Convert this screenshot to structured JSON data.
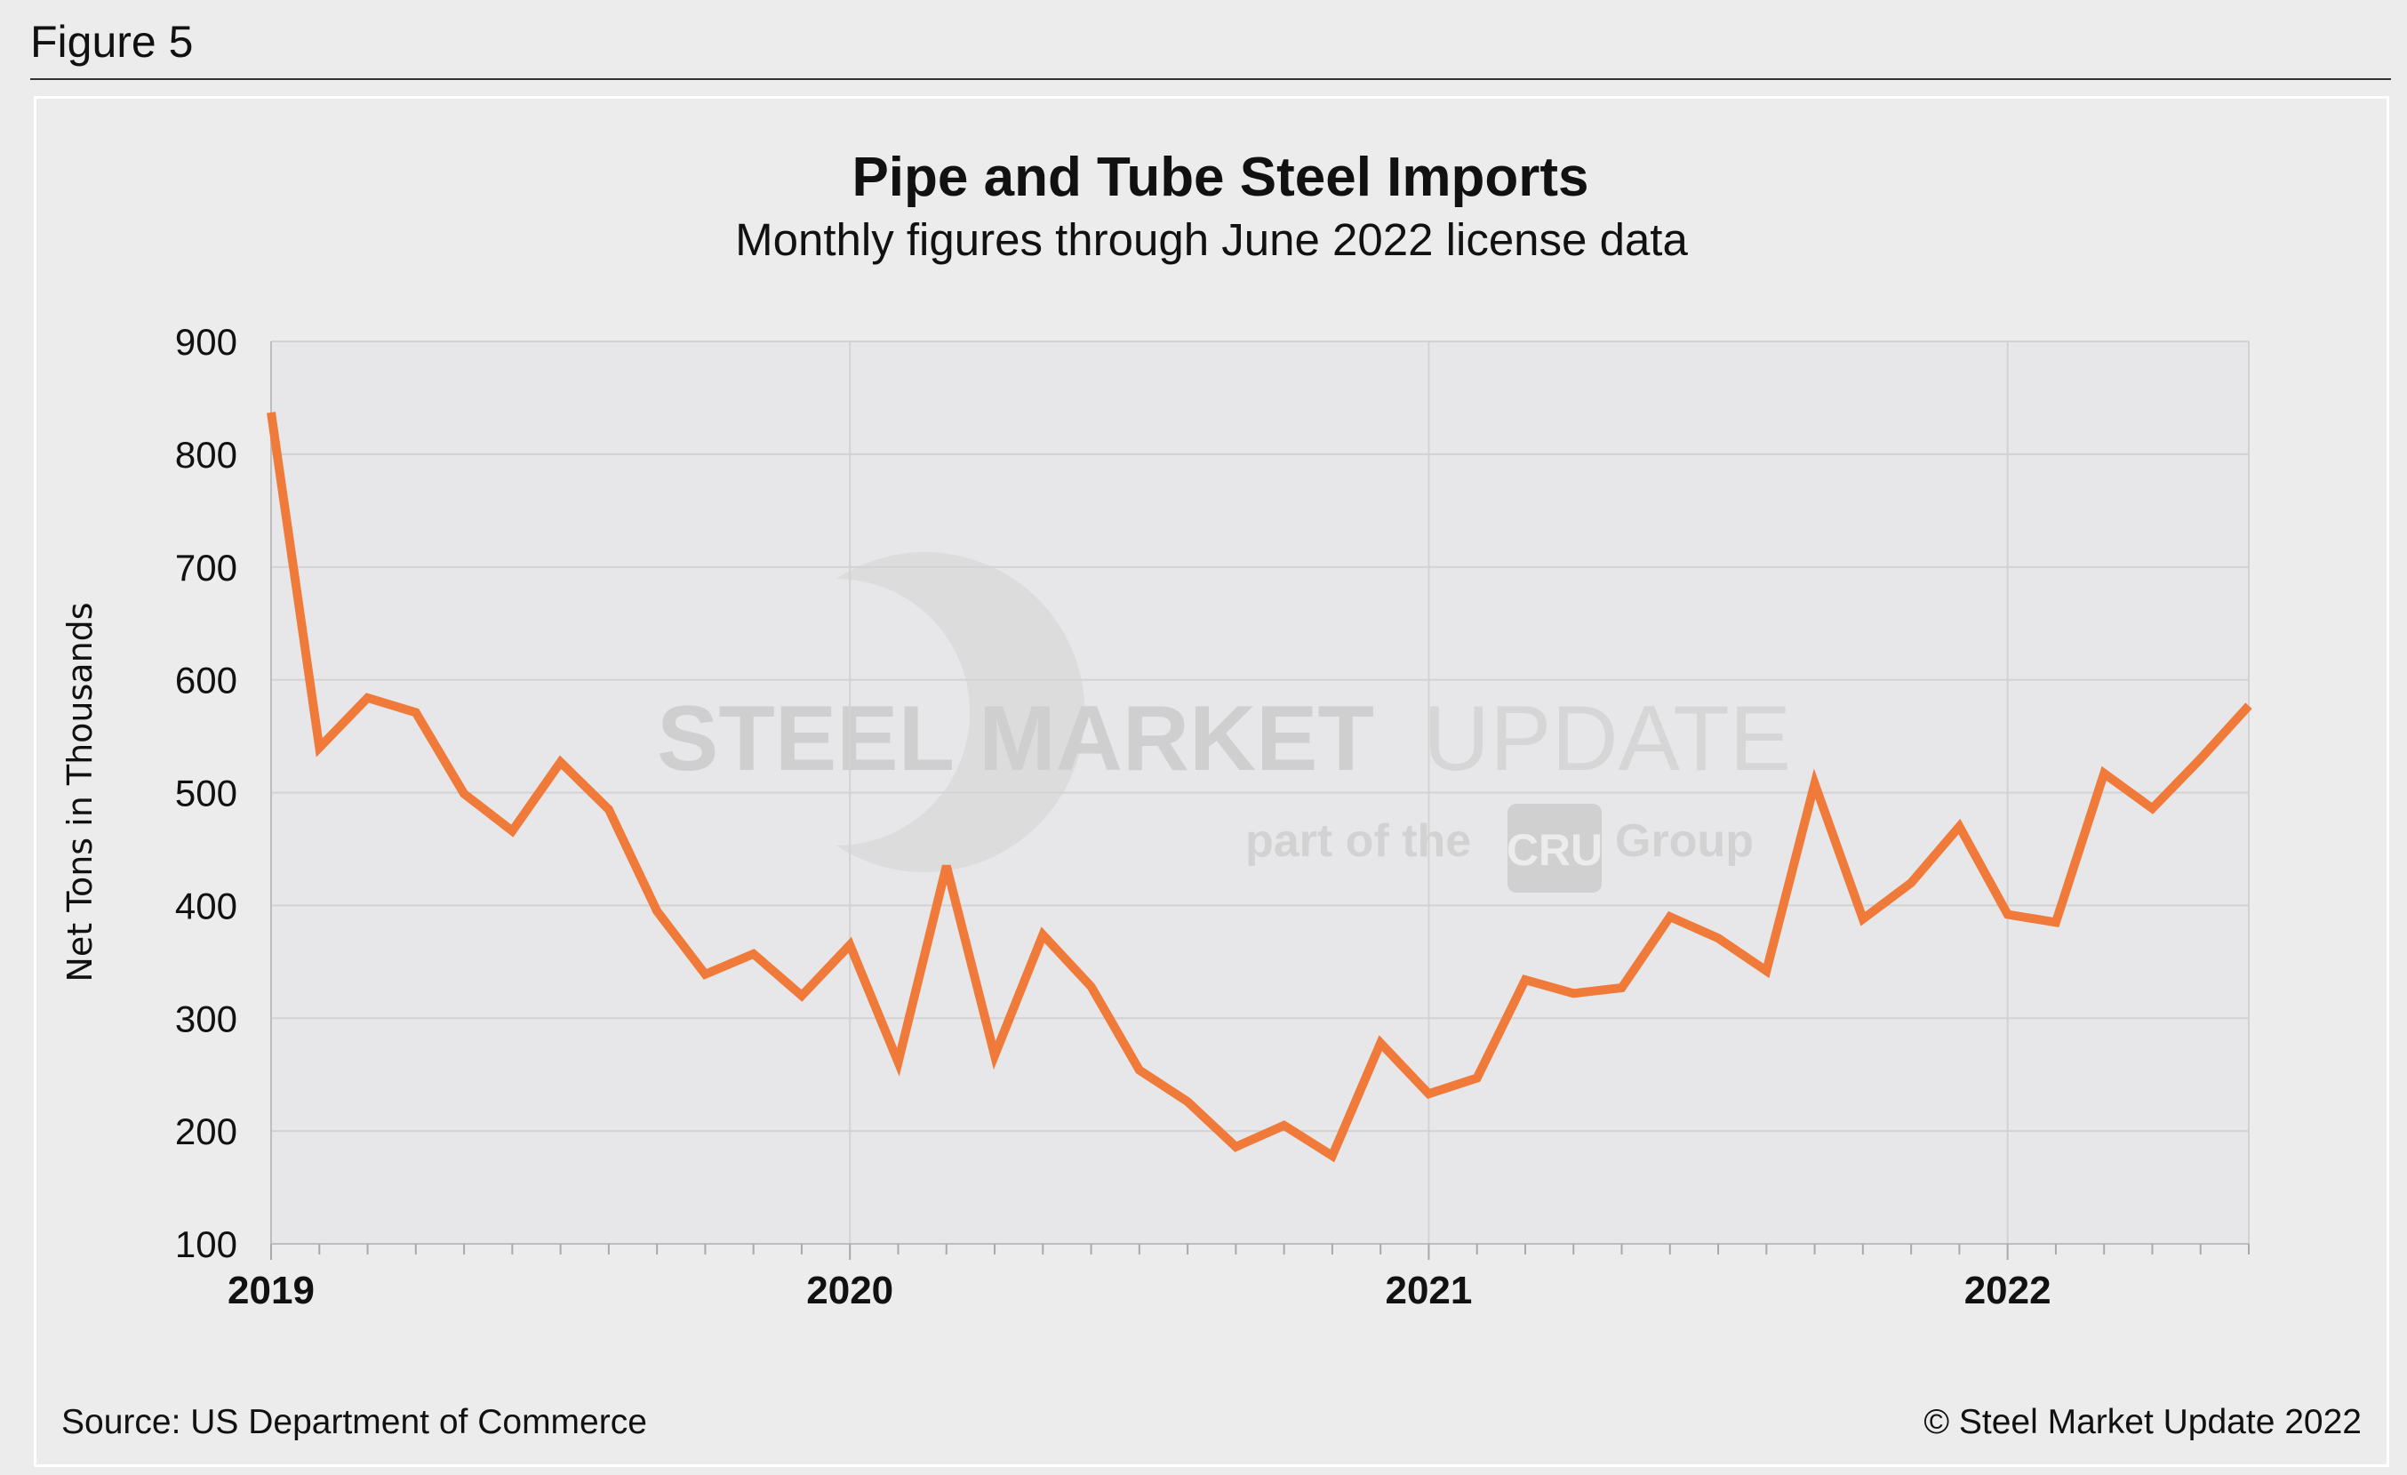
{
  "figure_label": "Figure 5",
  "footer": {
    "source": "Source: US Department of Commerce",
    "copyright": "© Steel Market Update 2022"
  },
  "watermark": {
    "word_bold": "STEEL MARKET",
    "word_light": "UPDATE",
    "part_of": "part of the",
    "badge": "CRU",
    "group": "Group"
  },
  "colors": {
    "series": "#f07a3a",
    "grid": "#d2d2d2",
    "plot_bg": "#e7e7e9"
  },
  "chart_data": {
    "type": "line",
    "title": "Pipe and Tube Steel Imports",
    "subtitle": "Monthly figures through June 2022 license data",
    "ylabel": "Net Tons in Thousands",
    "xlabel": "",
    "ylim": [
      100,
      900
    ],
    "yticks": [
      100,
      200,
      300,
      400,
      500,
      600,
      700,
      800,
      900
    ],
    "xtick_labels": [
      "2019",
      "2020",
      "2021",
      "2022"
    ],
    "grid": true,
    "legend": "none",
    "start_month": "2019-01",
    "series": [
      {
        "values": [
          837,
          540,
          584,
          571,
          499,
          466,
          527,
          485,
          395,
          339,
          357,
          320,
          365,
          261,
          435,
          267,
          374,
          328,
          254,
          226,
          186,
          205,
          178,
          278,
          233,
          247,
          334,
          322,
          327,
          390,
          371,
          342,
          508,
          388,
          420,
          470,
          392,
          385,
          517,
          486,
          530,
          577
        ]
      }
    ]
  }
}
